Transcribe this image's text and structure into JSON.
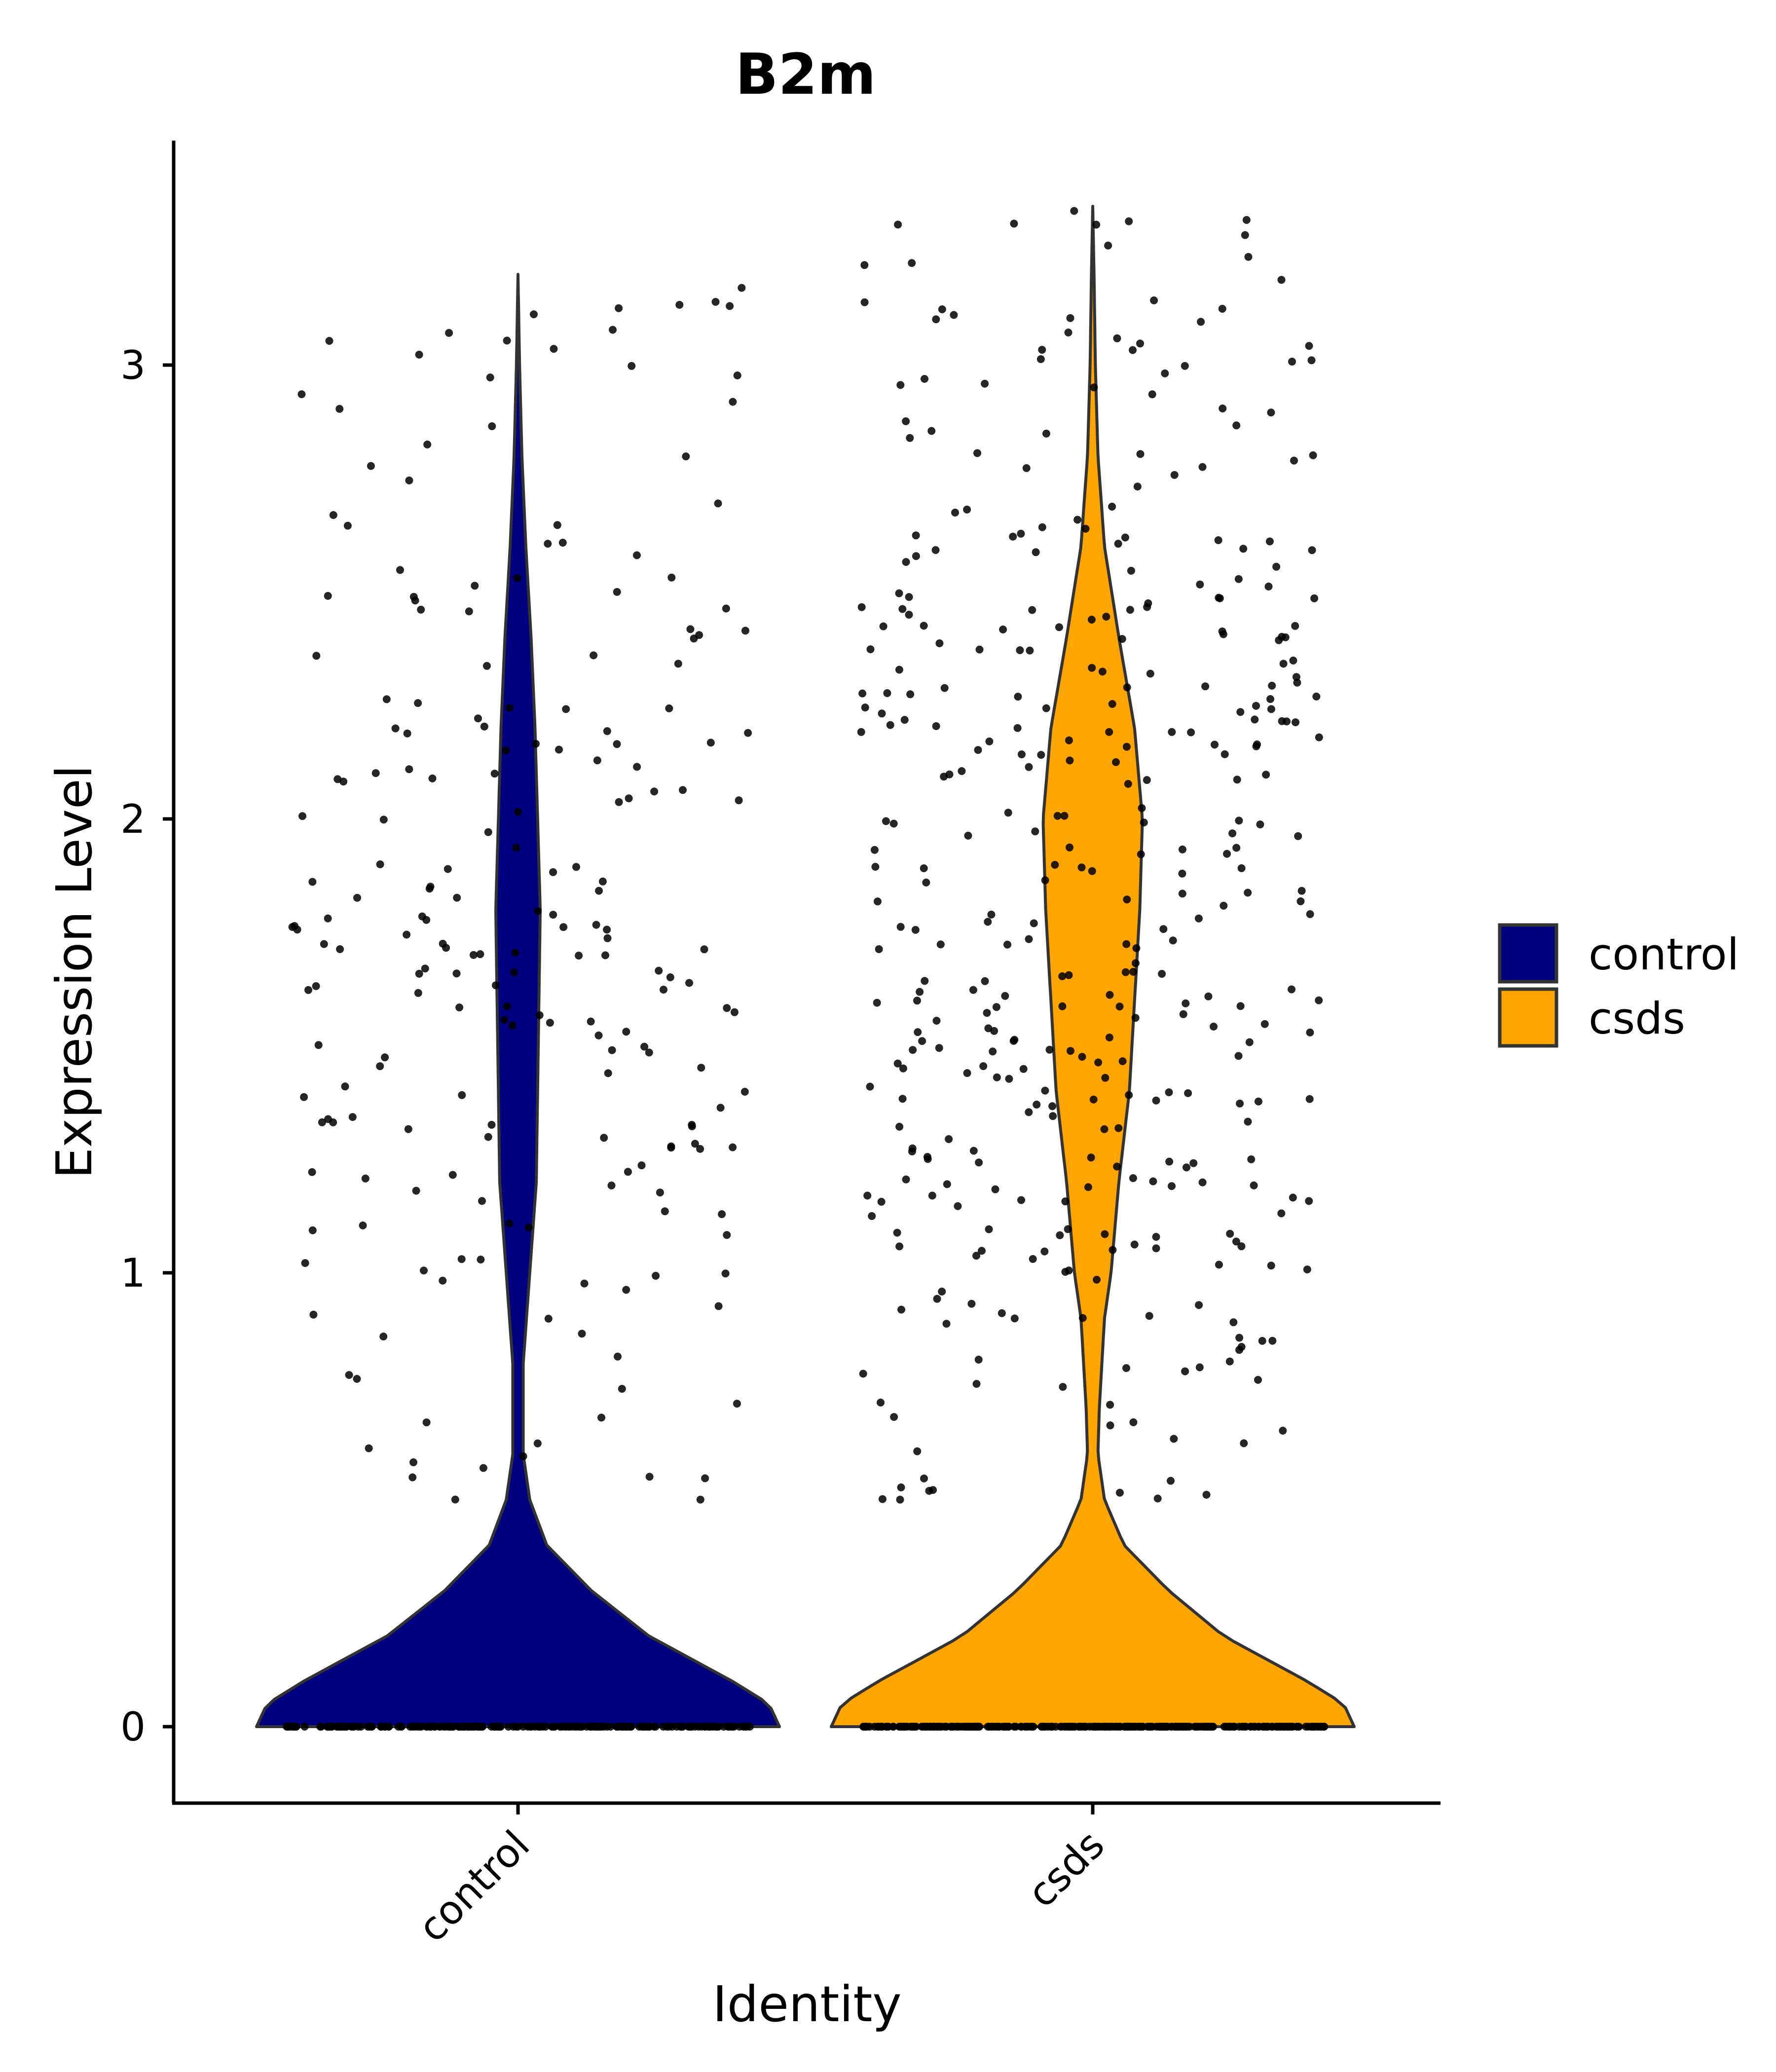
{
  "chart_data": {
    "type": "violin",
    "title": "B2m",
    "xlabel": "Identity",
    "ylabel": "Expression Level",
    "categories": [
      "control",
      "csds"
    ],
    "ylim": [
      -0.17,
      3.52
    ],
    "yticks": [
      0,
      1,
      2,
      3
    ],
    "ytick_labels": [
      "0",
      "1",
      "2",
      "3"
    ],
    "grid": false,
    "legend": {
      "placement": "right",
      "entries": [
        {
          "label": "control",
          "color": "#000080"
        },
        {
          "label": "csds",
          "color": "#FFA500"
        }
      ]
    },
    "series": [
      {
        "name": "control",
        "color": "#000080",
        "max": 3.2,
        "approx_points": 430,
        "fraction_zero": 0.5,
        "density": [
          [
            0.0,
            1.0
          ],
          [
            0.05,
            0.96
          ],
          [
            0.1,
            0.82
          ],
          [
            0.15,
            0.66
          ],
          [
            0.2,
            0.5
          ],
          [
            0.3,
            0.28
          ],
          [
            0.4,
            0.11
          ],
          [
            0.5,
            0.045
          ],
          [
            0.6,
            0.02
          ],
          [
            0.8,
            0.02
          ],
          [
            1.0,
            0.045
          ],
          [
            1.2,
            0.07
          ],
          [
            1.4,
            0.075
          ],
          [
            1.6,
            0.08
          ],
          [
            1.8,
            0.085
          ],
          [
            2.0,
            0.075
          ],
          [
            2.2,
            0.065
          ],
          [
            2.4,
            0.05
          ],
          [
            2.6,
            0.03
          ],
          [
            2.8,
            0.015
          ],
          [
            3.0,
            0.006
          ],
          [
            3.2,
            0.0
          ]
        ]
      },
      {
        "name": "csds",
        "color": "#FFA500",
        "max": 3.35,
        "approx_points": 700,
        "fraction_zero": 0.45,
        "density": [
          [
            0.0,
            1.0
          ],
          [
            0.05,
            0.96
          ],
          [
            0.1,
            0.82
          ],
          [
            0.15,
            0.66
          ],
          [
            0.2,
            0.5
          ],
          [
            0.3,
            0.29
          ],
          [
            0.4,
            0.12
          ],
          [
            0.5,
            0.045
          ],
          [
            0.6,
            0.02
          ],
          [
            0.7,
            0.025
          ],
          [
            0.9,
            0.045
          ],
          [
            1.0,
            0.07
          ],
          [
            1.2,
            0.1
          ],
          [
            1.4,
            0.14
          ],
          [
            1.6,
            0.16
          ],
          [
            1.8,
            0.18
          ],
          [
            2.0,
            0.19
          ],
          [
            2.2,
            0.16
          ],
          [
            2.4,
            0.1
          ],
          [
            2.6,
            0.045
          ],
          [
            2.8,
            0.02
          ],
          [
            3.0,
            0.01
          ],
          [
            3.2,
            0.005
          ],
          [
            3.35,
            0.0
          ]
        ]
      }
    ]
  }
}
